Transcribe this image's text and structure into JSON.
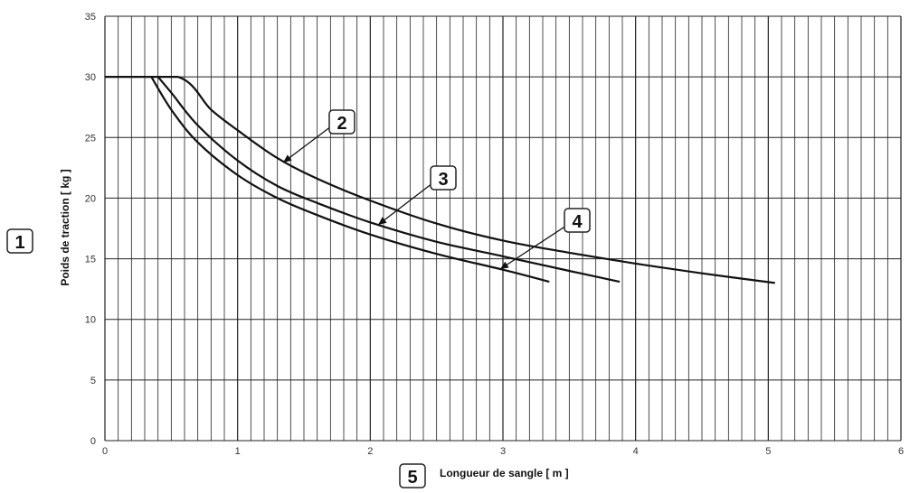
{
  "chart_data": {
    "type": "line",
    "title": "",
    "xlabel": "Longueur de sangle [ m ]",
    "ylabel": "Poids de traction [ kg ]",
    "xlim": [
      0,
      6
    ],
    "ylim": [
      0,
      35
    ],
    "xticks": [
      0,
      1,
      2,
      3,
      4,
      5,
      6
    ],
    "yticks": [
      0,
      5,
      10,
      15,
      20,
      25,
      30,
      35
    ],
    "x_minor_step": 0.1,
    "grid": true,
    "series": [
      {
        "callout": "2",
        "x": [
          0.0,
          0.55,
          0.8,
          1.0,
          1.3,
          1.6,
          2.0,
          2.5,
          3.0,
          3.5,
          4.0,
          4.5,
          5.05
        ],
        "y": [
          30,
          30,
          27.3,
          25.6,
          23.3,
          21.6,
          19.8,
          17.9,
          16.5,
          15.5,
          14.6,
          13.8,
          13.0
        ]
      },
      {
        "callout": "3",
        "x": [
          0.4,
          0.5,
          0.7,
          1.0,
          1.3,
          1.6,
          2.0,
          2.5,
          3.0,
          3.5,
          3.88
        ],
        "y": [
          30,
          28.7,
          26.0,
          23.1,
          21.0,
          19.6,
          18.0,
          16.4,
          15.2,
          14.0,
          13.1
        ]
      },
      {
        "callout": "4",
        "x": [
          0.35,
          0.5,
          0.7,
          1.0,
          1.3,
          1.6,
          2.0,
          2.5,
          3.0,
          3.35
        ],
        "y": [
          30,
          27.3,
          24.6,
          21.9,
          20.0,
          18.6,
          17.0,
          15.4,
          14.1,
          13.1
        ]
      }
    ],
    "callouts": [
      "1",
      "2",
      "3",
      "4",
      "5"
    ]
  }
}
